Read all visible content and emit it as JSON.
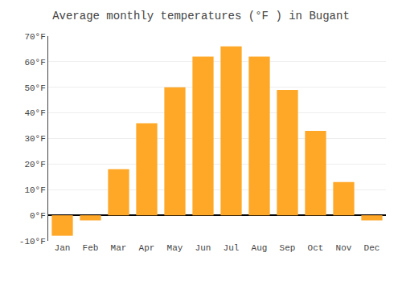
{
  "chart_data": {
    "type": "bar",
    "title": "Average monthly temperatures (°F ) in Bugant",
    "categories": [
      "Jan",
      "Feb",
      "Mar",
      "Apr",
      "May",
      "Jun",
      "Jul",
      "Aug",
      "Sep",
      "Oct",
      "Nov",
      "Dec"
    ],
    "values": [
      -8,
      -2,
      18,
      36,
      50,
      62,
      66,
      62,
      49,
      33,
      13,
      -2
    ],
    "color": "#FFA726",
    "ylim": [
      -10,
      70
    ],
    "yticks": [
      {
        "value": -10,
        "label": "-10°F"
      },
      {
        "value": 0,
        "label": "0°F"
      },
      {
        "value": 10,
        "label": "10°F"
      },
      {
        "value": 20,
        "label": "20°F"
      },
      {
        "value": 30,
        "label": "30°F"
      },
      {
        "value": 40,
        "label": "40°F"
      },
      {
        "value": 50,
        "label": "50°F"
      },
      {
        "value": 60,
        "label": "60°F"
      },
      {
        "value": 70,
        "label": "70°F"
      }
    ],
    "grid": true
  }
}
